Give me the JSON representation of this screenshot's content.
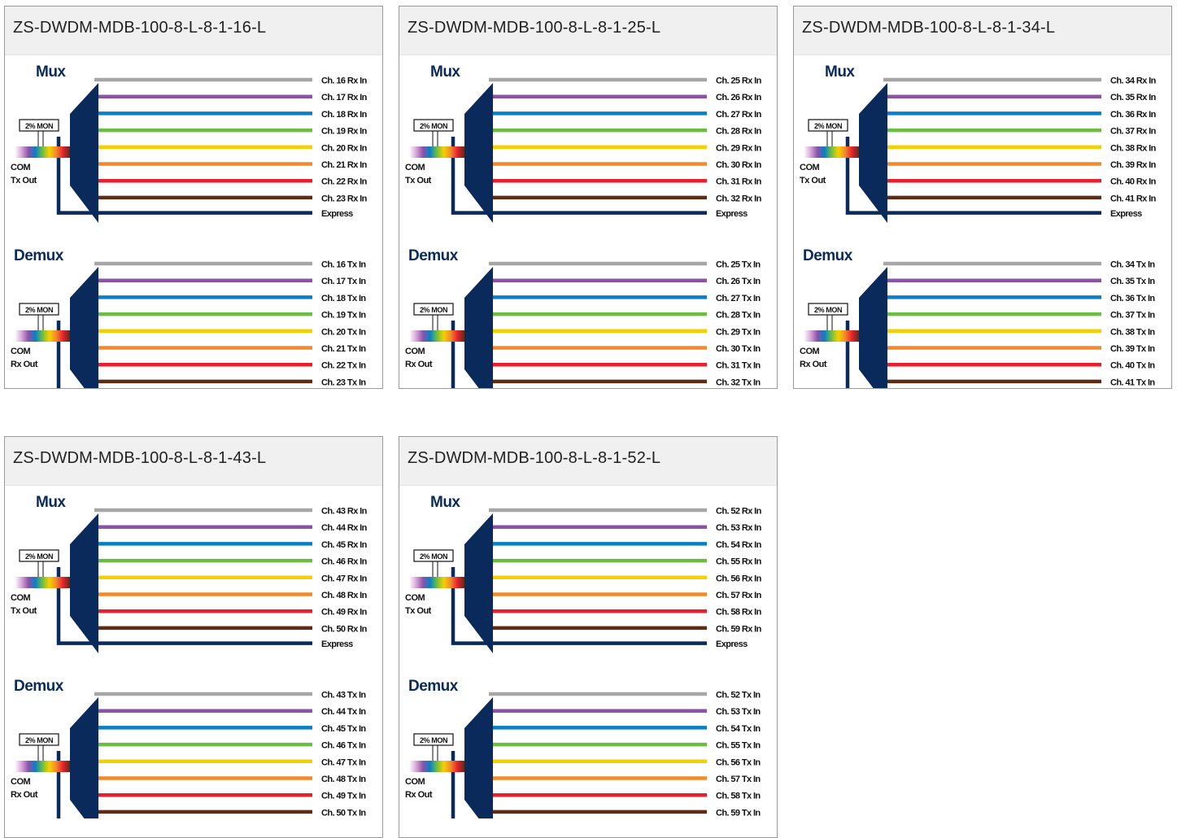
{
  "colors": {
    "mux_shape": "#0a2a5c",
    "lines": [
      "#a6a6a6",
      "#8b52a8",
      "#0a7fc8",
      "#6cbd44",
      "#f5d000",
      "#f28a2c",
      "#e8202e",
      "#5c2d14",
      "#0a2a5c"
    ]
  },
  "labels": {
    "mux": "Mux",
    "demux": "Demux",
    "mon": "2% MON",
    "com": "COM",
    "tx_out": "Tx Out",
    "rx_out": "Rx Out",
    "express": "Express",
    "ch_prefix": "Ch.",
    "mux_suffix": "Rx In",
    "demux_suffix": "Tx In"
  },
  "cards": [
    {
      "title": "ZS-DWDM-MDB-100-8-L-8-1-16-L",
      "mux_channels": [
        "Ch. 16 Rx In",
        "Ch. 17 Rx In",
        "Ch. 18 Rx In",
        "Ch. 19 Rx In",
        "Ch. 20 Rx In",
        "Ch. 21 Rx In",
        "Ch. 22 Rx In",
        "Ch. 23 Rx In"
      ],
      "demux_channels": [
        "Ch. 16 Tx In",
        "Ch. 17 Tx In",
        "Ch. 18 Tx In",
        "Ch. 19 Tx In",
        "Ch. 20 Tx In",
        "Ch. 21 Tx In",
        "Ch. 22 Tx In",
        "Ch. 23 Tx In"
      ]
    },
    {
      "title": "ZS-DWDM-MDB-100-8-L-8-1-25-L",
      "mux_channels": [
        "Ch. 25 Rx In",
        "Ch. 26 Rx In",
        "Ch. 27 Rx In",
        "Ch. 28 Rx In",
        "Ch. 29 Rx In",
        "Ch. 30 Rx In",
        "Ch. 31 Rx In",
        "Ch. 32 Rx In"
      ],
      "demux_channels": [
        "Ch. 25 Tx In",
        "Ch. 26 Tx In",
        "Ch. 27 Tx In",
        "Ch. 28 Tx In",
        "Ch. 29 Tx In",
        "Ch. 30 Tx In",
        "Ch. 31 Tx In",
        "Ch. 32 Tx In"
      ]
    },
    {
      "title": "ZS-DWDM-MDB-100-8-L-8-1-34-L",
      "mux_channels": [
        "Ch. 34 Rx In",
        "Ch. 35 Rx In",
        "Ch. 36 Rx In",
        "Ch. 37 Rx In",
        "Ch. 38 Rx In",
        "Ch. 39 Rx In",
        "Ch. 40 Rx In",
        "Ch. 41 Rx In"
      ],
      "demux_channels": [
        "Ch. 34 Tx In",
        "Ch. 35 Tx In",
        "Ch. 36 Tx In",
        "Ch. 37 Tx In",
        "Ch. 38 Tx In",
        "Ch. 39 Tx In",
        "Ch. 40 Tx In",
        "Ch. 41 Tx In"
      ]
    },
    {
      "title": "ZS-DWDM-MDB-100-8-L-8-1-43-L",
      "mux_channels": [
        "Ch. 43 Rx In",
        "Ch. 44 Rx In",
        "Ch. 45 Rx In",
        "Ch. 46 Rx In",
        "Ch. 47 Rx In",
        "Ch. 48 Rx In",
        "Ch. 49 Rx In",
        "Ch. 50 Rx In"
      ],
      "demux_channels": [
        "Ch. 43 Tx In",
        "Ch. 44 Tx In",
        "Ch. 45 Tx In",
        "Ch. 46 Tx In",
        "Ch. 47 Tx In",
        "Ch. 48 Tx In",
        "Ch. 49 Tx In",
        "Ch. 50 Tx In"
      ]
    },
    {
      "title": "ZS-DWDM-MDB-100-8-L-8-1-52-L",
      "mux_channels": [
        "Ch. 52 Rx In",
        "Ch. 53 Rx In",
        "Ch. 54 Rx In",
        "Ch. 55 Rx In",
        "Ch. 56 Rx In",
        "Ch. 57 Rx In",
        "Ch. 58 Rx In",
        "Ch. 59 Rx In"
      ],
      "demux_channels": [
        "Ch. 52 Tx In",
        "Ch. 53 Tx In",
        "Ch. 54 Tx In",
        "Ch. 55 Tx In",
        "Ch. 56 Tx In",
        "Ch. 57 Tx In",
        "Ch. 58 Tx In",
        "Ch. 59 Tx In"
      ]
    }
  ]
}
